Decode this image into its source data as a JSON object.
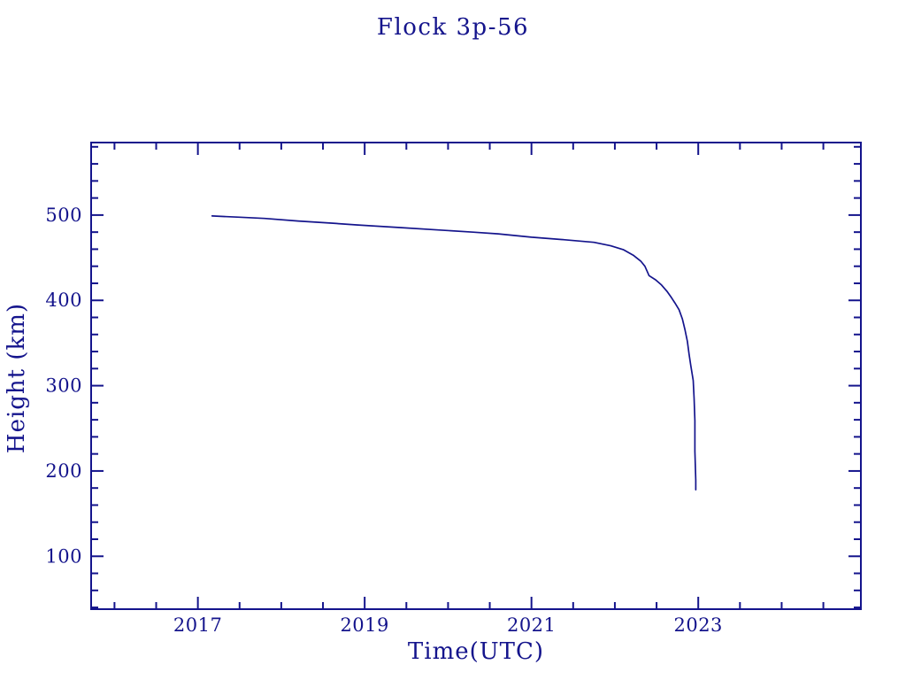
{
  "window": {
    "background": "#ffffff",
    "accent_color": "#14148C"
  },
  "chart_data": {
    "type": "line",
    "title": "Flock 3p-56",
    "xlabel": "Time(UTC)",
    "ylabel": "Height (km)",
    "xlim": [
      2015.72,
      2024.95
    ],
    "ylim": [
      38,
      585
    ],
    "grid": false,
    "legend": "none",
    "line_color": "#14148C",
    "x_major_ticks": [
      2017,
      2019,
      2021,
      2023
    ],
    "x_tick_labels": [
      "2017",
      "2019",
      "2021",
      "2023"
    ],
    "x_minor_step": 0.5,
    "y_major_ticks": [
      100,
      200,
      300,
      400,
      500
    ],
    "y_tick_labels": [
      "100",
      "200",
      "300",
      "400",
      "500"
    ],
    "y_minor_step": 20,
    "series": [
      {
        "name": "height_km",
        "x": [
          2017.17,
          2017.5,
          2017.8,
          2018.2,
          2018.6,
          2018.9,
          2019.4,
          2019.9,
          2020.3,
          2020.6,
          2021.0,
          2021.4,
          2021.75,
          2021.95,
          2022.1,
          2022.22,
          2022.31,
          2022.36,
          2022.41,
          2022.49,
          2022.56,
          2022.63,
          2022.68,
          2022.72,
          2022.77,
          2022.81,
          2022.84,
          2022.87,
          2022.89,
          2022.91,
          2022.94,
          2022.95,
          2022.96,
          2022.96,
          2022.97,
          2022.97
        ],
        "y": [
          499,
          497.5,
          496,
          493,
          490.5,
          488.5,
          485.5,
          482.5,
          480,
          478,
          474,
          471,
          468,
          464,
          459.5,
          453,
          446,
          440,
          429,
          424,
          418,
          410,
          403,
          397,
          389,
          378,
          366,
          352,
          337,
          324,
          306,
          285,
          259,
          223,
          189,
          178
        ]
      }
    ]
  }
}
